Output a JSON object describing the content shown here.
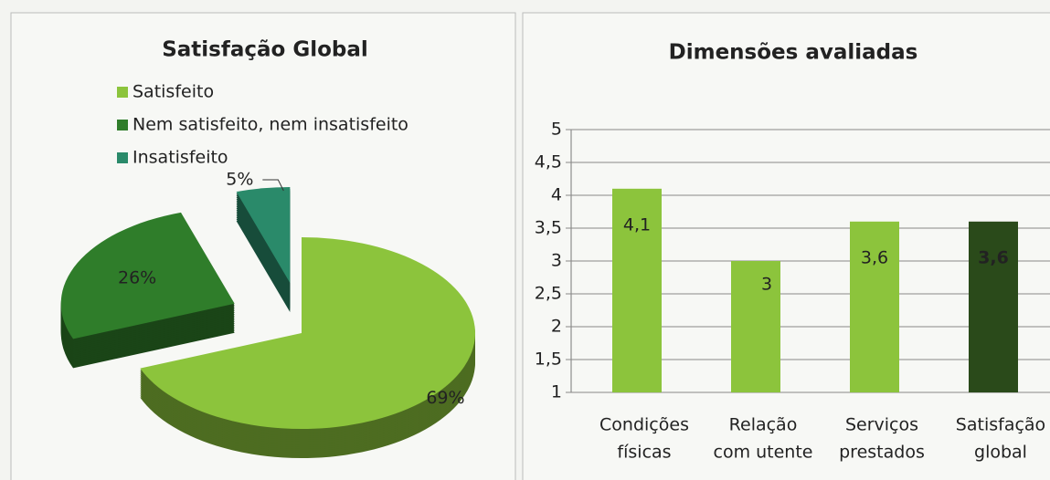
{
  "chart_data": [
    {
      "type": "pie",
      "title": "Satisfação Global",
      "categories": [
        "Satisfeito",
        "Nem satisfeito, nem insatisfeito",
        "Insatisfeito"
      ],
      "values": [
        69,
        26,
        5
      ],
      "value_labels": [
        "69%",
        "26%",
        "5%"
      ],
      "colors": [
        "#8cc43c",
        "#2f7d2a",
        "#2a8a6a"
      ],
      "legend": "top-left"
    },
    {
      "type": "bar",
      "title": "Dimensões avaliadas",
      "categories": [
        [
          "Condições",
          "físicas"
        ],
        [
          "Relação",
          "com utente"
        ],
        [
          "Serviços",
          "prestados"
        ],
        [
          "Satisfação",
          "global"
        ]
      ],
      "values": [
        4.1,
        3,
        3.6,
        3.6
      ],
      "value_labels": [
        "4,1",
        "3",
        "3,6",
        "3,6"
      ],
      "colors": [
        "#8cc43c",
        "#8cc43c",
        "#8cc43c",
        "#2a4a1a"
      ],
      "ylim": [
        1,
        5
      ],
      "yticks": [
        1,
        {
          "value": 1.5,
          "label": "1,5"
        },
        2,
        {
          "value": 2.5,
          "label": "2,5"
        },
        3,
        {
          "value": 3.5,
          "label": "3,5"
        },
        4,
        {
          "value": 4.5,
          "label": "4,5"
        },
        5
      ],
      "grid": true
    }
  ]
}
